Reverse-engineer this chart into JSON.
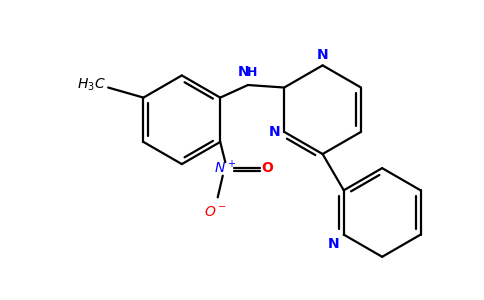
{
  "bg_color": "#ffffff",
  "bond_color": "#000000",
  "n_color": "#0000ff",
  "o_color": "#ff0000",
  "line_width": 1.6,
  "figsize": [
    4.84,
    3.0
  ],
  "dpi": 100,
  "xlim": [
    0,
    9.5
  ],
  "ylim": [
    0,
    5.9
  ]
}
